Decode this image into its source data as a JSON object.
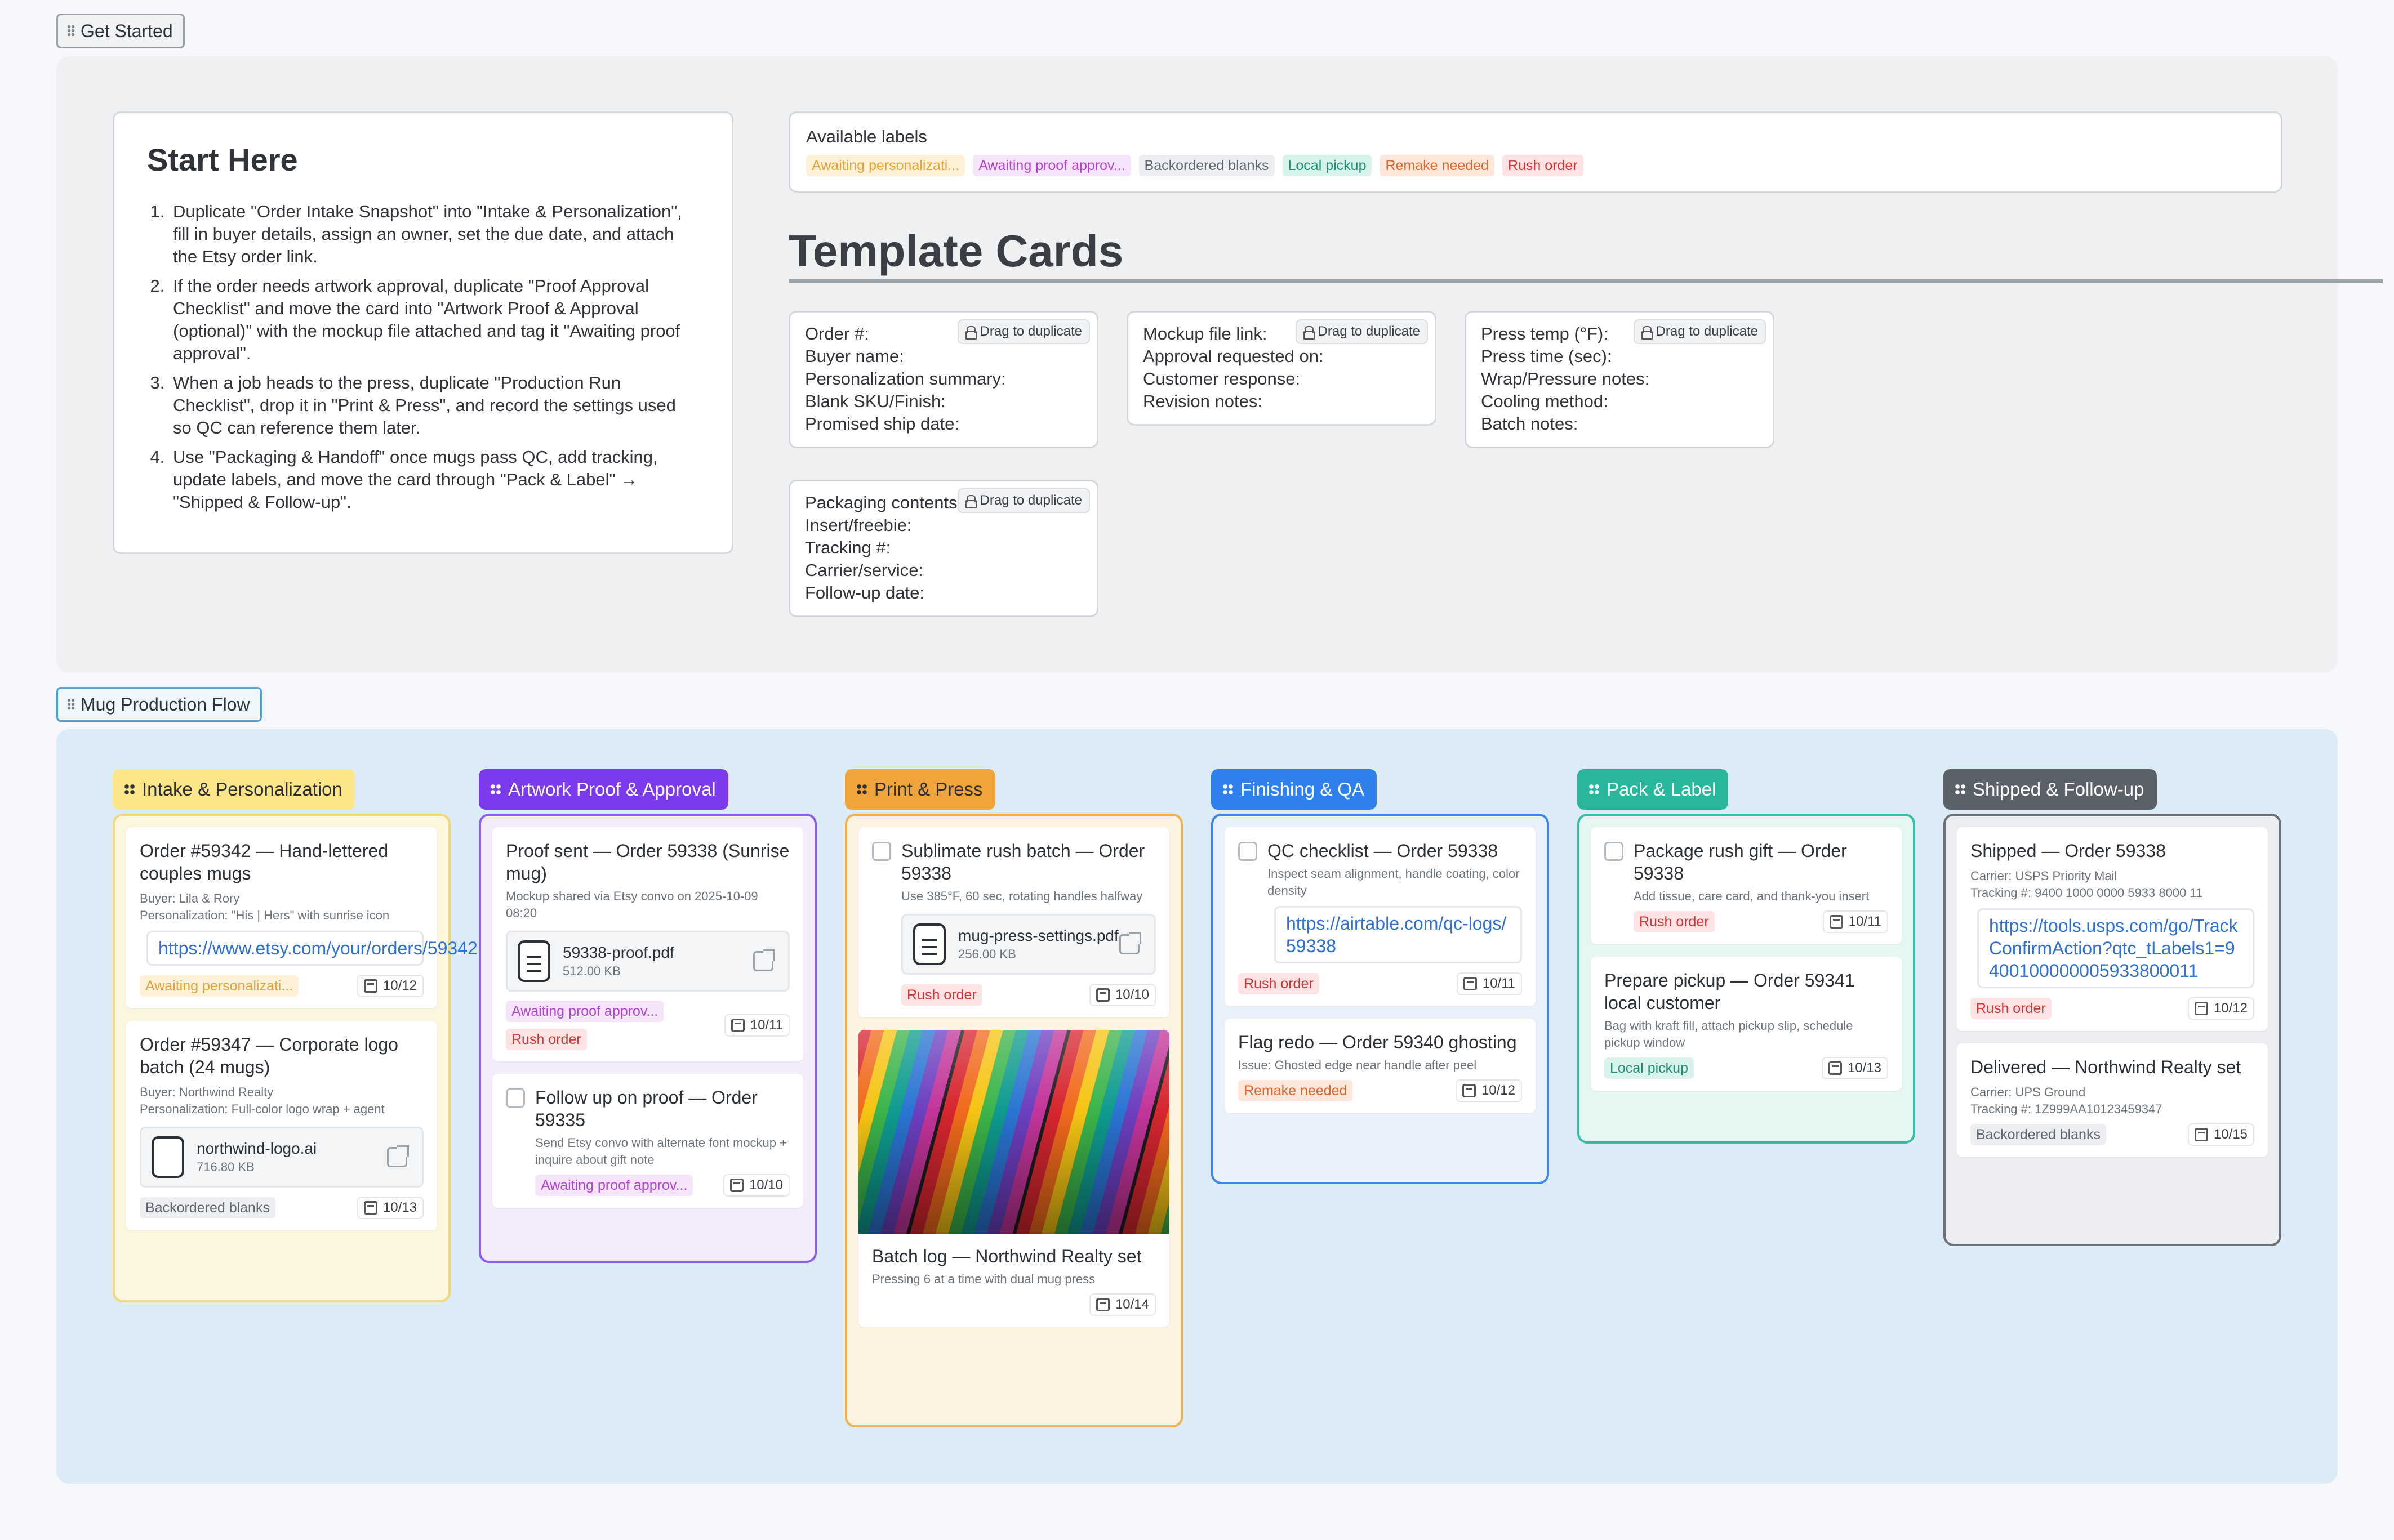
{
  "frames": {
    "get_started": "Get Started",
    "mug_flow": "Mug Production Flow"
  },
  "start": {
    "title": "Start Here",
    "steps": [
      "Duplicate \"Order Intake Snapshot\" into \"Intake & Personalization\", fill in buyer details, assign an owner, set the due date, and attach the Etsy order link.",
      "If the order needs artwork approval, duplicate \"Proof Approval Checklist\" and move the card into \"Artwork Proof & Approval (optional)\" with the mockup file attached and tag it \"Awaiting proof approval\".",
      "When a job heads to the press, duplicate \"Production Run Checklist\", drop it in \"Print & Press\", and record the settings used so QC can reference them later.",
      "Use \"Packaging & Handoff\" once mugs pass QC, add tracking, update labels, and move the card through \"Pack & Label\" → \"Shipped & Follow-up\"."
    ]
  },
  "labels": {
    "title": "Available labels",
    "items": [
      "Awaiting personalizati...",
      "Awaiting proof approv...",
      "Backordered blanks",
      "Local pickup",
      "Remake needed",
      "Rush order"
    ]
  },
  "template_cards": {
    "title": "Template Cards",
    "drag": "Drag to duplicate",
    "cards": [
      [
        "Order #:",
        "Buyer name:",
        "Personalization summary:",
        "Blank SKU/Finish:",
        "Promised ship date:"
      ],
      [
        "Mockup file link:",
        "Approval requested on:",
        "Customer response:",
        "Revision notes:"
      ],
      [
        "Press temp (°F):",
        "Press time (sec):",
        "Wrap/Pressure notes:",
        "Cooling method:",
        "Batch notes:"
      ],
      [
        "Packaging contents:",
        "Insert/freebie:",
        "Tracking #:",
        "Carrier/service:",
        "Follow-up date:"
      ]
    ]
  },
  "columns": {
    "intake": {
      "title": "Intake & Personalization",
      "c1": {
        "title": "Order #59342 — Hand-lettered couples mugs",
        "m1": "Buyer: Lila & Rory",
        "m2": "Personalization: \"His | Hers\" with sunrise icon",
        "link": "https://www.etsy.com/your/orders/59342",
        "label": "Awaiting personalizati...",
        "date": "10/12"
      },
      "c2": {
        "title": "Order #59347 — Corporate logo batch (24 mugs)",
        "m1": "Buyer: Northwind Realty",
        "m2": "Personalization: Full-color logo wrap + agent",
        "file": "northwind-logo.ai",
        "size": "716.80 KB",
        "label": "Backordered blanks",
        "date": "10/13"
      }
    },
    "artwork": {
      "title": "Artwork Proof & Approval",
      "c1": {
        "title": "Proof sent — Order 59338 (Sunrise mug)",
        "m1": "Mockup shared via Etsy convo on 2025-10-09 08:20",
        "file": "59338-proof.pdf",
        "size": "512.00 KB",
        "label1": "Awaiting proof approv...",
        "label2": "Rush order",
        "date": "10/11"
      },
      "c2": {
        "title": "Follow up on proof — Order 59335",
        "m1": "Send Etsy convo with alternate font mockup + inquire about gift note",
        "label": "Awaiting proof approv...",
        "date": "10/10"
      }
    },
    "print": {
      "title": "Print & Press",
      "c1": {
        "title": "Sublimate rush batch — Order 59338",
        "m1": "Use 385°F, 60 sec, rotating handles halfway",
        "file": "mug-press-settings.pdf",
        "size": "256.00 KB",
        "label": "Rush order",
        "date": "10/10"
      },
      "c2": {
        "title": "Batch log — Northwind Realty set",
        "m1": "Pressing 6 at a time with dual mug press",
        "date": "10/14"
      }
    },
    "finishing": {
      "title": "Finishing & QA",
      "c1": {
        "title": "QC checklist — Order 59338",
        "m1": "Inspect seam alignment, handle coating, color density",
        "link": "https://airtable.com/qc-logs/59338",
        "label": "Rush order",
        "date": "10/11"
      },
      "c2": {
        "title": "Flag redo — Order 59340 ghosting",
        "m1": "Issue: Ghosted edge near handle after peel",
        "label": "Remake needed",
        "date": "10/12"
      }
    },
    "pack": {
      "title": "Pack & Label",
      "c1": {
        "title": "Package rush gift — Order 59338",
        "m1": "Add tissue, care card, and thank-you insert",
        "label": "Rush order",
        "date": "10/11"
      },
      "c2": {
        "title": "Prepare pickup — Order 59341 local customer",
        "m1": "Bag with kraft fill, attach pickup slip, schedule pickup window",
        "label": "Local pickup",
        "date": "10/13"
      }
    },
    "shipped": {
      "title": "Shipped & Follow-up",
      "c1": {
        "title": "Shipped — Order 59338",
        "m1": "Carrier: USPS Priority Mail",
        "m2": "Tracking #: 9400 1000 0000 5933 8000 11",
        "link": "https://tools.usps.com/go/TrackConfirmAction?qtc_tLabels1=9400100000005933800011",
        "label": "Rush order",
        "date": "10/12"
      },
      "c2": {
        "title": "Delivered — Northwind Realty set",
        "m1": "Carrier: UPS Ground",
        "m2": "Tracking #: 1Z999AA10123459347",
        "label": "Backordered blanks",
        "date": "10/15"
      }
    }
  },
  "colors": {
    "intake": "#f8d96a",
    "artwork": "#7c3aed",
    "print": "#f0a43c",
    "finishing": "#2f80ed",
    "pack": "#28b79a",
    "shipped": "#5b6169"
  }
}
